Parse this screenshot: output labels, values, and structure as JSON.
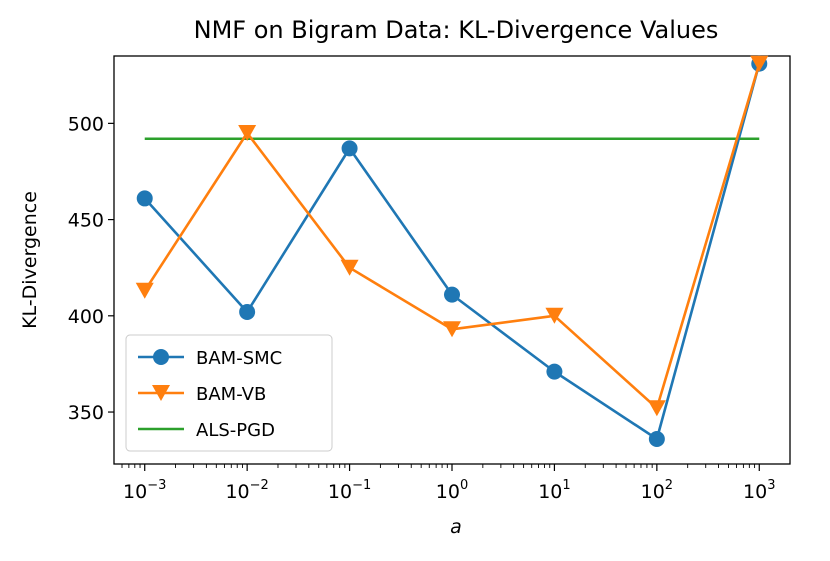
{
  "chart_data": {
    "type": "line",
    "title": "NMF on Bigram Data: KL-Divergence Values",
    "xlabel": "a",
    "ylabel": "KL-Divergence",
    "xscale": "log",
    "xlim_exp": [
      -3.3,
      3.3
    ],
    "ylim": [
      323,
      535
    ],
    "x_exponents": [
      -3,
      -2,
      -1,
      0,
      1,
      2,
      3
    ],
    "x_tick_labels": [
      "10",
      "10",
      "10",
      "10",
      "10",
      "10",
      "10"
    ],
    "x_tick_sup": [
      "−3",
      "−2",
      "−1",
      "0",
      "1",
      "2",
      "3"
    ],
    "y_ticks": [
      350,
      400,
      450,
      500
    ],
    "y_tick_labels": [
      "350",
      "400",
      "450",
      "500"
    ],
    "legend_position": "lower-left",
    "series": [
      {
        "name": "BAM-SMC",
        "color": "#1f77b4",
        "marker": "circle",
        "values": [
          461,
          402,
          487,
          411,
          371,
          336,
          531
        ]
      },
      {
        "name": "BAM-VB",
        "color": "#ff7f0e",
        "marker": "triangle-down",
        "values": [
          413,
          495,
          425,
          393,
          400,
          352,
          531
        ]
      },
      {
        "name": "ALS-PGD",
        "color": "#2ca02c",
        "marker": "none",
        "values": [
          492,
          492,
          492,
          492,
          492,
          492,
          492
        ]
      }
    ]
  }
}
